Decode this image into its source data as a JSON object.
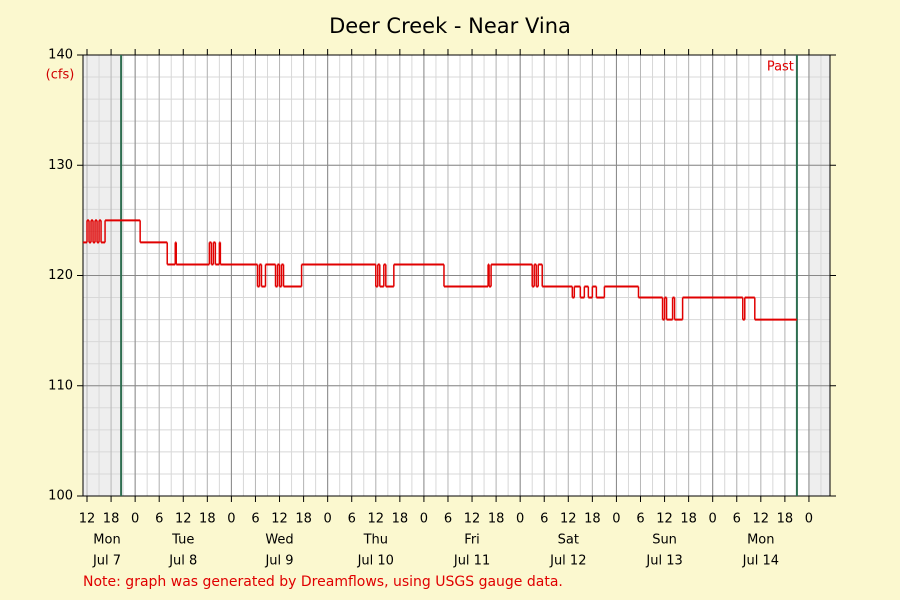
{
  "chart_data": {
    "type": "step",
    "title": "Deer Creek - Near Vina",
    "y_unit": "(cfs)",
    "note": "Note: graph was generated by Dreamflows, using USGS gauge data.",
    "color": "#e00000",
    "x": [
      "Jul 7 11:00",
      "Jul 7 12:00",
      "Jul 7 12:30",
      "Jul 7 13:00",
      "Jul 7 13:30",
      "Jul 7 14:00",
      "Jul 7 14:30",
      "Jul 7 15:00",
      "Jul 7 15:30",
      "Jul 7 16:30",
      "Jul 8 01:15",
      "Jul 8 08:00",
      "Jul 8 10:00",
      "Jul 8 10:15",
      "Jul 8 18:30",
      "Jul 8 19:00",
      "Jul 8 19:30",
      "Jul 8 20:00",
      "Jul 8 21:00",
      "Jul 8 21:15",
      "Jul 9 06:30",
      "Jul 9 07:00",
      "Jul 9 07:30",
      "Jul 9 08:30",
      "Jul 9 11:00",
      "Jul 9 11:30",
      "Jul 9 12:00",
      "Jul 9 12:30",
      "Jul 9 13:00",
      "Jul 9 17:30",
      "Jul 10 12:00",
      "Jul 10 12:30",
      "Jul 10 13:00",
      "Jul 10 14:00",
      "Jul 10 14:30",
      "Jul 10 16:30",
      "Jul 11 05:00",
      "Jul 11 16:00",
      "Jul 11 16:15",
      "Jul 11 16:45",
      "Jul 12 03:00",
      "Jul 12 03:30",
      "Jul 12 04:00",
      "Jul 12 04:30",
      "Jul 12 05:30",
      "Jul 12 13:00",
      "Jul 12 13:30",
      "Jul 12 15:00",
      "Jul 12 16:00",
      "Jul 12 17:00",
      "Jul 12 18:00",
      "Jul 12 19:00",
      "Jul 12 21:00",
      "Jul 13 05:30",
      "Jul 13 11:30",
      "Jul 13 12:00",
      "Jul 13 12:30",
      "Jul 13 14:00",
      "Jul 13 14:30",
      "Jul 13 16:30",
      "Jul 14 07:30",
      "Jul 14 08:00",
      "Jul 14 10:30",
      "Jul 14 21:00"
    ],
    "values": [
      123,
      125,
      123,
      125,
      123,
      125,
      123,
      125,
      123,
      125,
      123,
      121,
      123,
      121,
      123,
      121,
      123,
      121,
      123,
      121,
      119,
      121,
      119,
      121,
      119,
      121,
      119,
      121,
      119,
      121,
      119,
      121,
      119,
      121,
      119,
      121,
      119,
      121,
      119,
      121,
      119,
      121,
      119,
      121,
      119,
      118,
      119,
      118,
      119,
      118,
      119,
      118,
      119,
      118,
      116,
      118,
      116,
      118,
      116,
      118,
      116,
      118,
      116,
      116
    ],
    "xlim": [
      "Jul 7 11:00",
      "Jul 15 05:15"
    ],
    "xticks": [
      {
        "value": "Jul 7 12:00",
        "label": "12"
      },
      {
        "value": "Jul 7 18:00",
        "label": "18"
      },
      {
        "value": "Jul 8 00:00",
        "label": "0"
      },
      {
        "value": "Jul 8 06:00",
        "label": "6"
      },
      {
        "value": "Jul 8 12:00",
        "label": "12"
      },
      {
        "value": "Jul 8 18:00",
        "label": "18"
      },
      {
        "value": "Jul 9 00:00",
        "label": "0"
      },
      {
        "value": "Jul 9 06:00",
        "label": "6"
      },
      {
        "value": "Jul 9 12:00",
        "label": "12"
      },
      {
        "value": "Jul 9 18:00",
        "label": "18"
      },
      {
        "value": "Jul 10 00:00",
        "label": "0"
      },
      {
        "value": "Jul 10 06:00",
        "label": "6"
      },
      {
        "value": "Jul 10 12:00",
        "label": "12"
      },
      {
        "value": "Jul 10 18:00",
        "label": "18"
      },
      {
        "value": "Jul 11 00:00",
        "label": "0"
      },
      {
        "value": "Jul 11 06:00",
        "label": "6"
      },
      {
        "value": "Jul 11 12:00",
        "label": "12"
      },
      {
        "value": "Jul 11 18:00",
        "label": "18"
      },
      {
        "value": "Jul 12 00:00",
        "label": "0"
      },
      {
        "value": "Jul 12 06:00",
        "label": "6"
      },
      {
        "value": "Jul 12 12:00",
        "label": "12"
      },
      {
        "value": "Jul 12 18:00",
        "label": "18"
      },
      {
        "value": "Jul 13 00:00",
        "label": "0"
      },
      {
        "value": "Jul 13 06:00",
        "label": "6"
      },
      {
        "value": "Jul 13 12:00",
        "label": "12"
      },
      {
        "value": "Jul 13 18:00",
        "label": "18"
      },
      {
        "value": "Jul 14 00:00",
        "label": "0"
      },
      {
        "value": "Jul 14 06:00",
        "label": "6"
      },
      {
        "value": "Jul 14 12:00",
        "label": "12"
      },
      {
        "value": "Jul 14 18:00",
        "label": "18"
      },
      {
        "value": "Jul 15 00:00",
        "label": "0"
      }
    ],
    "day_labels": [
      {
        "weekday": "Mon",
        "date": "Jul 7"
      },
      {
        "weekday": "Tue",
        "date": "Jul 8"
      },
      {
        "weekday": "Wed",
        "date": "Jul 9"
      },
      {
        "weekday": "Thu",
        "date": "Jul 10"
      },
      {
        "weekday": "Fri",
        "date": "Jul 11"
      },
      {
        "weekday": "Sat",
        "date": "Jul 12"
      },
      {
        "weekday": "Sun",
        "date": "Jul 13"
      },
      {
        "weekday": "Mon",
        "date": "Jul 14"
      }
    ],
    "ylim": [
      100,
      140
    ],
    "yticks": [
      100,
      110,
      120,
      130,
      140
    ],
    "grid": true,
    "shaded": [
      [
        "Jul 7 11:00",
        "Jul 7 20:30"
      ],
      [
        "Jul 15 00:00",
        "Jul 15 05:15"
      ]
    ],
    "vlines": [
      "Jul 7 20:30",
      "Jul 14 21:00"
    ],
    "past_label": "Past"
  }
}
